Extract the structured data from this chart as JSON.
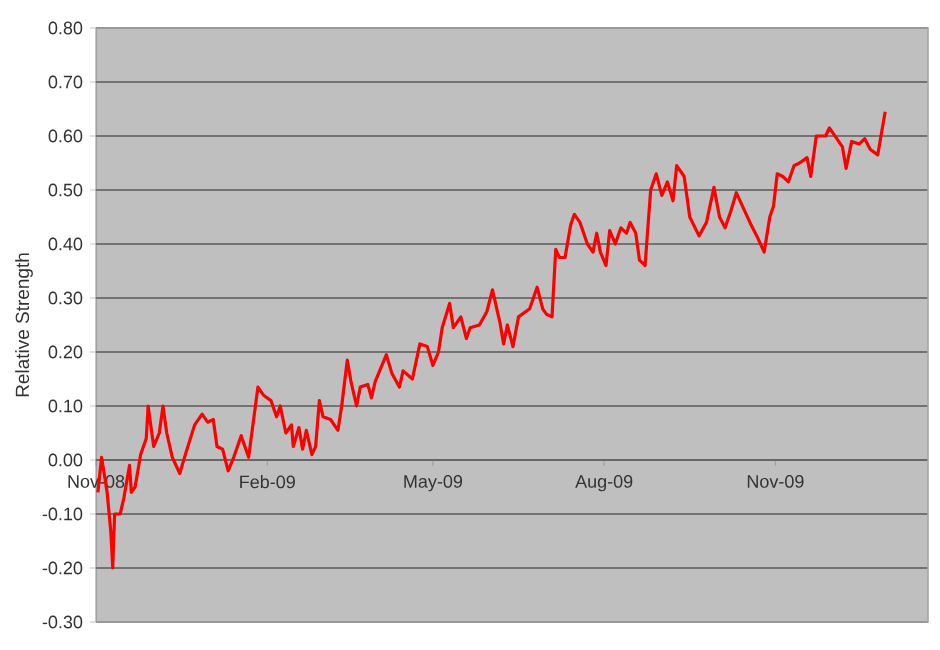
{
  "chart_data": {
    "type": "line",
    "ylabel": "Relative Strength",
    "color": "#ff0000",
    "grid": "y",
    "marker": "none",
    "line_style": "solid",
    "xlim": [
      "2008-11-01",
      "2010-01-22"
    ],
    "xticks": [
      {
        "value": "2008-11-01",
        "label": "Nov-08"
      },
      {
        "value": "2009-02-01",
        "label": "Feb-09"
      },
      {
        "value": "2009-05-01",
        "label": "May-09"
      },
      {
        "value": "2009-08-01",
        "label": "Aug-09"
      },
      {
        "value": "2009-11-01",
        "label": "Nov-09"
      }
    ],
    "ylim": [
      -0.3,
      0.8
    ],
    "yticks": [
      {
        "value": -0.3,
        "label": "-0.30"
      },
      {
        "value": -0.2,
        "label": "-0.20"
      },
      {
        "value": -0.1,
        "label": "-0.10"
      },
      {
        "value": 0,
        "label": "0.00"
      },
      {
        "value": 0.1,
        "label": "0.10"
      },
      {
        "value": 0.2,
        "label": "0.20"
      },
      {
        "value": 0.3,
        "label": "0.30"
      },
      {
        "value": 0.4,
        "label": "0.40"
      },
      {
        "value": 0.5,
        "label": "0.50"
      },
      {
        "value": 0.6,
        "label": "0.60"
      },
      {
        "value": 0.7,
        "label": "0.70"
      },
      {
        "value": 0.8,
        "label": "0.80"
      }
    ],
    "x": [
      "2008-11-02",
      "2008-11-04",
      "2008-11-07",
      "2008-11-09",
      "2008-11-10",
      "2008-11-11",
      "2008-11-14",
      "2008-11-16",
      "2008-11-19",
      "2008-11-20",
      "2008-11-22",
      "2008-11-25",
      "2008-11-28",
      "2008-11-29",
      "2008-12-02",
      "2008-12-05",
      "2008-12-07",
      "2008-12-09",
      "2008-12-12",
      "2008-12-16",
      "2008-12-19",
      "2008-12-24",
      "2008-12-28",
      "2008-12-31",
      "2009-01-03",
      "2009-01-05",
      "2009-01-08",
      "2009-01-11",
      "2009-01-14",
      "2009-01-18",
      "2009-01-22",
      "2009-01-27",
      "2009-01-30",
      "2009-02-03",
      "2009-02-06",
      "2009-02-08",
      "2009-02-11",
      "2009-02-14",
      "2009-02-15",
      "2009-02-18",
      "2009-02-20",
      "2009-02-22",
      "2009-02-25",
      "2009-02-27",
      "2009-03-01",
      "2009-03-03",
      "2009-03-07",
      "2009-03-11",
      "2009-03-13",
      "2009-03-16",
      "2009-03-18",
      "2009-03-21",
      "2009-03-23",
      "2009-03-27",
      "2009-03-29",
      "2009-03-31",
      "2009-04-06",
      "2009-04-09",
      "2009-04-13",
      "2009-04-15",
      "2009-04-20",
      "2009-04-24",
      "2009-04-28",
      "2009-05-01",
      "2009-05-04",
      "2009-05-06",
      "2009-05-10",
      "2009-05-12",
      "2009-05-16",
      "2009-05-19",
      "2009-05-21",
      "2009-05-26",
      "2009-05-30",
      "2009-06-02",
      "2009-06-06",
      "2009-06-08",
      "2009-06-10",
      "2009-06-13",
      "2009-06-16",
      "2009-06-22",
      "2009-06-26",
      "2009-06-29",
      "2009-07-01",
      "2009-07-04",
      "2009-07-06",
      "2009-07-08",
      "2009-07-11",
      "2009-07-14",
      "2009-07-16",
      "2009-07-19",
      "2009-07-23",
      "2009-07-26",
      "2009-07-28",
      "2009-07-30",
      "2009-08-02",
      "2009-08-04",
      "2009-08-07",
      "2009-08-10",
      "2009-08-13",
      "2009-08-15",
      "2009-08-18",
      "2009-08-20",
      "2009-08-23",
      "2009-08-26",
      "2009-08-29",
      "2009-09-01",
      "2009-09-04",
      "2009-09-07",
      "2009-09-09",
      "2009-09-13",
      "2009-09-16",
      "2009-09-21",
      "2009-09-25",
      "2009-09-29",
      "2009-10-02",
      "2009-10-05",
      "2009-10-08",
      "2009-10-11",
      "2009-10-15",
      "2009-10-19",
      "2009-10-22",
      "2009-10-26",
      "2009-10-29",
      "2009-10-31",
      "2009-11-02",
      "2009-11-05",
      "2009-11-08",
      "2009-11-11",
      "2009-11-14",
      "2009-11-18",
      "2009-11-20",
      "2009-11-23",
      "2009-11-28",
      "2009-11-30",
      "2009-12-04",
      "2009-12-07",
      "2009-12-09",
      "2009-12-12",
      "2009-12-16",
      "2009-12-19",
      "2009-12-22",
      "2009-12-26",
      "2009-12-28",
      "2009-12-30"
    ],
    "values": [
      -0.06,
      0.005,
      -0.06,
      -0.135,
      -0.2,
      -0.1,
      -0.1,
      -0.07,
      -0.01,
      -0.06,
      -0.05,
      0.01,
      0.04,
      0.1,
      0.025,
      0.05,
      0.1,
      0.05,
      0.005,
      -0.025,
      0.01,
      0.065,
      0.085,
      0.07,
      0.075,
      0.025,
      0.02,
      -0.02,
      0.005,
      0.045,
      0.005,
      0.135,
      0.12,
      0.11,
      0.08,
      0.1,
      0.05,
      0.065,
      0.025,
      0.06,
      0.02,
      0.055,
      0.01,
      0.025,
      0.11,
      0.08,
      0.075,
      0.055,
      0.1,
      0.185,
      0.145,
      0.1,
      0.135,
      0.14,
      0.115,
      0.145,
      0.195,
      0.16,
      0.135,
      0.165,
      0.15,
      0.215,
      0.21,
      0.175,
      0.2,
      0.245,
      0.29,
      0.245,
      0.265,
      0.225,
      0.245,
      0.25,
      0.275,
      0.315,
      0.255,
      0.215,
      0.25,
      0.21,
      0.265,
      0.28,
      0.32,
      0.28,
      0.27,
      0.265,
      0.39,
      0.375,
      0.375,
      0.435,
      0.455,
      0.44,
      0.4,
      0.385,
      0.42,
      0.385,
      0.36,
      0.425,
      0.4,
      0.43,
      0.42,
      0.44,
      0.42,
      0.37,
      0.36,
      0.5,
      0.53,
      0.49,
      0.515,
      0.48,
      0.545,
      0.525,
      0.45,
      0.415,
      0.44,
      0.505,
      0.45,
      0.43,
      0.46,
      0.495,
      0.465,
      0.435,
      0.415,
      0.385,
      0.45,
      0.47,
      0.53,
      0.525,
      0.515,
      0.545,
      0.55,
      0.56,
      0.525,
      0.6,
      0.6,
      0.615,
      0.595,
      0.58,
      0.54,
      0.59,
      0.585,
      0.595,
      0.575,
      0.565,
      0.605,
      0.645
    ]
  }
}
